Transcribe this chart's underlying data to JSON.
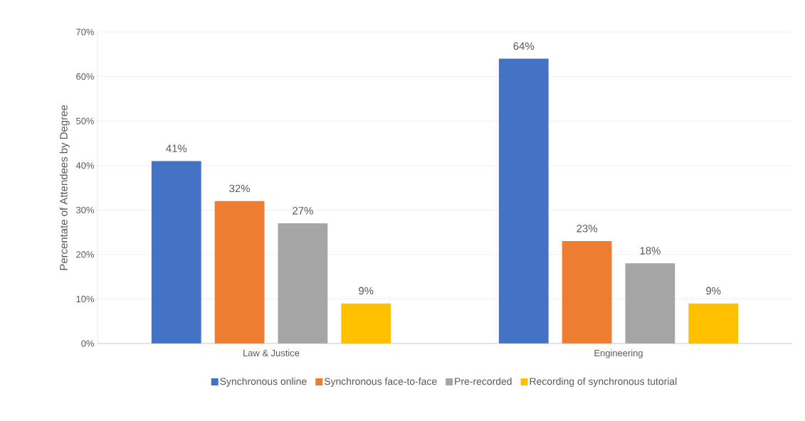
{
  "chart_data": {
    "type": "bar",
    "ylabel": "Percentate of Attendees by Degree",
    "categories": [
      "Law & Justice",
      "Engineering"
    ],
    "series": [
      {
        "name": "Synchronous online",
        "color": "#4472c4",
        "values": [
          41,
          64
        ],
        "value_labels": [
          "41%",
          "64%"
        ]
      },
      {
        "name": "Synchronous face-to-face",
        "color": "#ed7d31",
        "values": [
          32,
          23
        ],
        "value_labels": [
          "32%",
          "23%"
        ]
      },
      {
        "name": "Pre-recorded",
        "color": "#a5a5a5",
        "values": [
          27,
          18
        ],
        "value_labels": [
          "27%",
          "18%"
        ]
      },
      {
        "name": "Recording of synchronous tutorial",
        "color": "#ffc000",
        "values": [
          9,
          9
        ],
        "value_labels": [
          "9%",
          "9%"
        ]
      }
    ],
    "ylim": [
      0,
      70
    ],
    "yticks": [
      {
        "value": 0,
        "label": "0%"
      },
      {
        "value": 10,
        "label": "10%"
      },
      {
        "value": 20,
        "label": "20%"
      },
      {
        "value": 30,
        "label": "30%"
      },
      {
        "value": 40,
        "label": "40%"
      },
      {
        "value": 50,
        "label": "50%"
      },
      {
        "value": 60,
        "label": "60%"
      },
      {
        "value": 70,
        "label": "70%"
      }
    ],
    "grid": "y",
    "legend": "bottom"
  }
}
